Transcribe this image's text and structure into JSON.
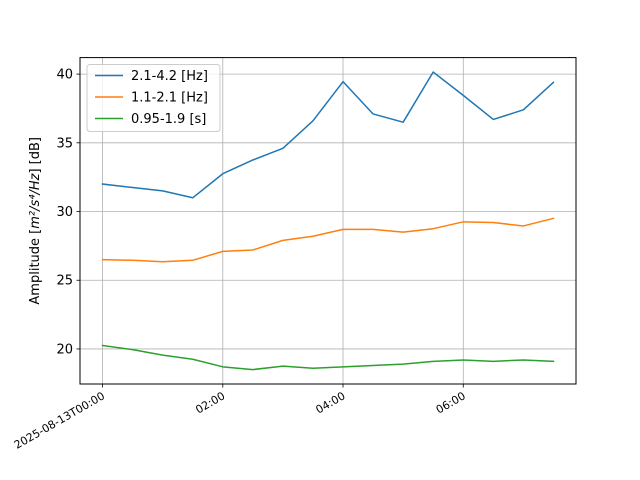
{
  "chart_data": {
    "type": "line",
    "x": [
      "2025-08-13T00:00",
      "00:30",
      "01:00",
      "01:30",
      "02:00",
      "02:30",
      "03:00",
      "03:30",
      "04:00",
      "04:30",
      "05:00",
      "05:30",
      "06:00",
      "06:30",
      "07:00",
      "07:30"
    ],
    "x_hours": [
      0,
      0.5,
      1,
      1.5,
      2,
      2.5,
      3,
      3.5,
      4,
      4.5,
      5,
      5.5,
      6,
      6.5,
      7,
      7.5
    ],
    "series": [
      {
        "name": "2.1-4.2 [Hz]",
        "color": "#1f77b4",
        "values": [
          32.0,
          31.75,
          31.5,
          31.0,
          32.75,
          33.75,
          34.6,
          36.6,
          39.45,
          37.1,
          36.5,
          40.15,
          38.45,
          36.7,
          37.4,
          39.4
        ]
      },
      {
        "name": "1.1-2.1 [Hz]",
        "color": "#ff7f0e",
        "values": [
          26.5,
          26.45,
          26.35,
          26.45,
          27.1,
          27.2,
          27.9,
          28.2,
          28.7,
          28.7,
          28.5,
          28.75,
          29.25,
          29.2,
          28.95,
          29.5
        ]
      },
      {
        "name": "0.95-1.9 [s]",
        "color": "#2ca02c",
        "values": [
          20.25,
          19.95,
          19.55,
          19.25,
          18.7,
          18.5,
          18.75,
          18.6,
          18.7,
          18.8,
          18.9,
          19.1,
          19.2,
          19.1,
          19.2,
          19.1
        ]
      }
    ],
    "xticks": [
      {
        "hours": 0,
        "label": "2025-08-13T00:00"
      },
      {
        "hours": 2,
        "label": "02:00"
      },
      {
        "hours": 4,
        "label": "04:00"
      },
      {
        "hours": 6,
        "label": "06:00"
      }
    ],
    "yticks": [
      20,
      25,
      30,
      35,
      40
    ],
    "xlim": [
      -0.375,
      7.875
    ],
    "ylim": [
      17.45,
      41.2
    ],
    "ylabel_main": "Amplitude [",
    "ylabel_math": "m²/s⁴/Hz",
    "ylabel_end": "] [dB]",
    "grid": true,
    "legend_position": "upper-left"
  }
}
